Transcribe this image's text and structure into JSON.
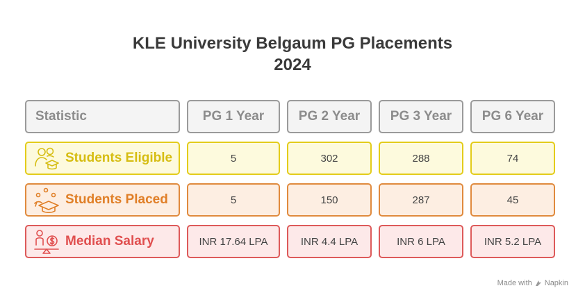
{
  "title_line1": "KLE University Belgaum PG Placements",
  "title_line2": "2024",
  "header": {
    "statistic": "Statistic",
    "columns": [
      "PG 1 Year",
      "PG 2 Year",
      "PG 3 Year",
      "PG 6 Year"
    ]
  },
  "rows": [
    {
      "label": "Students Eligible",
      "icon": "students-eligible-icon",
      "values": [
        "5",
        "302",
        "288",
        "74"
      ]
    },
    {
      "label": "Students Placed",
      "icon": "graduation-cap-icon",
      "values": [
        "5",
        "150",
        "287",
        "45"
      ]
    },
    {
      "label": "Median Salary",
      "icon": "salary-balance-icon",
      "values": [
        "INR 17.64 LPA",
        "INR 4.4 LPA",
        "INR 6 LPA",
        "INR 5.2 LPA"
      ]
    }
  ],
  "credit": {
    "made_with": "Made with",
    "brand": "Napkin"
  },
  "colors": {
    "eligible": "#e3cc1a",
    "placed": "#e08a3d",
    "salary": "#dd5a5a",
    "header": "#9a9a9a"
  }
}
